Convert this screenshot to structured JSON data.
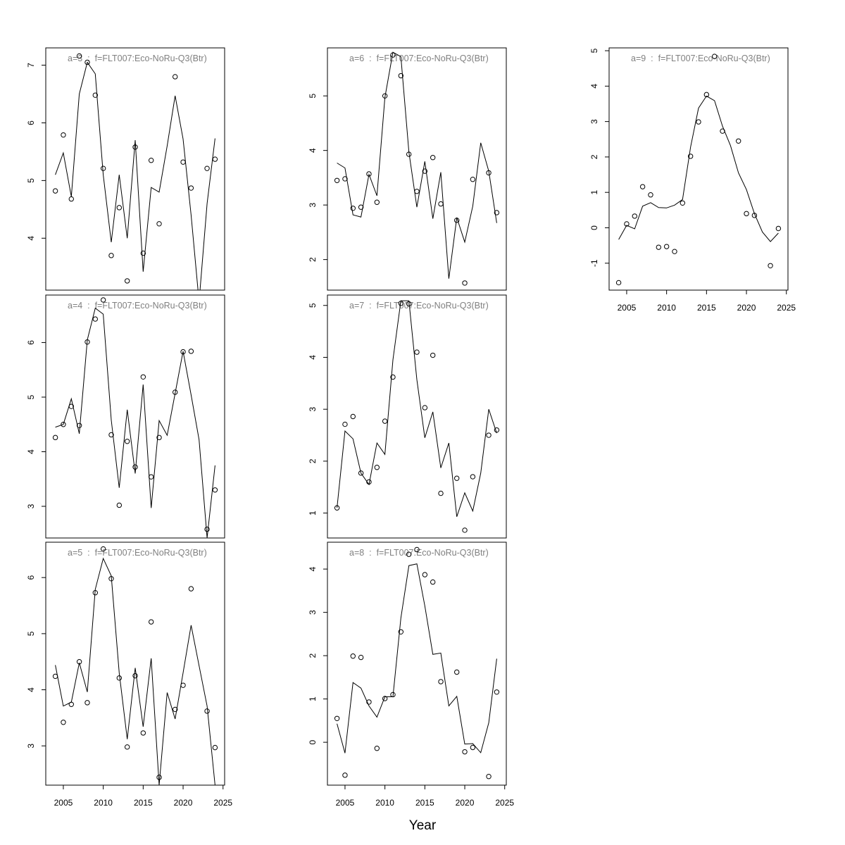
{
  "chart_data": [
    {
      "type": "line",
      "title": "a=3  :  f=FLT007:Eco-NoRu-Q3(Btr)",
      "xlim": [
        2002.8,
        2025.2
      ],
      "ylim": [
        3.1,
        7.3
      ],
      "xticks": [
        2005,
        2010,
        2015,
        2020,
        2025
      ],
      "yticks": [
        4,
        5,
        6,
        7
      ],
      "series": [
        {
          "kind": "line",
          "x": [
            2004,
            2005,
            2006,
            2007,
            2008,
            2009,
            2010,
            2011,
            2012,
            2013,
            2014,
            2015,
            2016,
            2017,
            2018,
            2019,
            2020,
            2021,
            2022,
            2023,
            2024
          ],
          "y": [
            5.1,
            5.48,
            4.72,
            6.5,
            7.05,
            6.85,
            5.1,
            3.93,
            5.1,
            4.0,
            5.7,
            3.42,
            4.88,
            4.8,
            5.6,
            6.47,
            5.72,
            4.4,
            2.9,
            4.6,
            5.73
          ]
        },
        {
          "kind": "points",
          "x": [
            2004,
            2005,
            2006,
            2007,
            2008,
            2009,
            2010,
            2011,
            2012,
            2013,
            2014,
            2015,
            2016,
            2017,
            2019,
            2020,
            2021,
            2023,
            2024
          ],
          "y": [
            4.82,
            5.79,
            4.68,
            7.16,
            7.05,
            6.48,
            5.21,
            3.7,
            4.53,
            3.26,
            5.58,
            3.74,
            5.35,
            4.25,
            6.8,
            5.32,
            4.87,
            5.21,
            5.37
          ]
        }
      ]
    },
    {
      "type": "line",
      "title": "a=4  :  f=FLT007:Eco-NoRu-Q3(Btr)",
      "xlim": [
        2002.8,
        2025.2
      ],
      "ylim": [
        2.42,
        6.87
      ],
      "xticks": [
        2005,
        2010,
        2015,
        2020,
        2025
      ],
      "yticks": [
        3,
        4,
        5,
        6
      ],
      "series": [
        {
          "kind": "line",
          "x": [
            2004,
            2005,
            2006,
            2007,
            2008,
            2009,
            2010,
            2011,
            2012,
            2013,
            2014,
            2015,
            2016,
            2017,
            2018,
            2019,
            2020,
            2021,
            2022,
            2023,
            2024
          ],
          "y": [
            4.45,
            4.5,
            4.97,
            4.33,
            6.05,
            6.63,
            6.52,
            4.58,
            3.34,
            4.77,
            3.6,
            5.23,
            2.97,
            4.57,
            4.3,
            5.07,
            5.84,
            5.04,
            4.22,
            2.42,
            3.75
          ]
        },
        {
          "kind": "points",
          "x": [
            2004,
            2005,
            2006,
            2007,
            2008,
            2009,
            2010,
            2011,
            2012,
            2013,
            2014,
            2015,
            2016,
            2017,
            2019,
            2020,
            2021,
            2023,
            2024
          ],
          "y": [
            4.26,
            4.5,
            4.83,
            4.48,
            6.01,
            6.43,
            6.78,
            4.31,
            3.02,
            4.19,
            3.72,
            5.37,
            3.54,
            4.26,
            5.09,
            5.83,
            5.84,
            2.58,
            3.3
          ]
        }
      ]
    },
    {
      "type": "line",
      "title": "a=5  :  f=FLT007:Eco-NoRu-Q3(Btr)",
      "xlim": [
        2002.8,
        2025.2
      ],
      "ylim": [
        2.3,
        6.63
      ],
      "xticks": [
        2005,
        2010,
        2015,
        2020,
        2025
      ],
      "yticks": [
        3,
        4,
        5,
        6
      ],
      "series": [
        {
          "kind": "line",
          "x": [
            2004,
            2005,
            2006,
            2007,
            2008,
            2009,
            2010,
            2011,
            2012,
            2013,
            2014,
            2015,
            2016,
            2017,
            2018,
            2019,
            2020,
            2021,
            2022,
            2023,
            2024
          ],
          "y": [
            4.44,
            3.71,
            3.78,
            4.48,
            3.96,
            5.79,
            6.34,
            6.03,
            4.3,
            3.12,
            4.39,
            3.34,
            4.56,
            2.3,
            3.95,
            3.48,
            4.3,
            5.15,
            4.43,
            3.71,
            2.3
          ]
        },
        {
          "kind": "points",
          "x": [
            2004,
            2005,
            2006,
            2007,
            2008,
            2009,
            2010,
            2011,
            2012,
            2013,
            2014,
            2015,
            2016,
            2017,
            2019,
            2020,
            2021,
            2023,
            2024
          ],
          "y": [
            4.24,
            3.42,
            3.74,
            4.5,
            3.77,
            5.73,
            6.51,
            5.98,
            4.21,
            2.98,
            4.25,
            3.23,
            5.21,
            2.44,
            3.65,
            4.08,
            5.8,
            3.62,
            2.97
          ]
        }
      ]
    },
    {
      "type": "line",
      "title": "a=6  :  f=FLT007:Eco-NoRu-Q3(Btr)",
      "xlim": [
        2002.8,
        2025.2
      ],
      "ylim": [
        1.44,
        5.88
      ],
      "xticks": [
        2005,
        2010,
        2015,
        2020,
        2025
      ],
      "yticks": [
        2,
        3,
        4,
        5
      ],
      "series": [
        {
          "kind": "line",
          "x": [
            2004,
            2005,
            2006,
            2007,
            2008,
            2009,
            2010,
            2011,
            2012,
            2013,
            2014,
            2015,
            2016,
            2017,
            2018,
            2019,
            2020,
            2021,
            2022,
            2023,
            2024
          ],
          "y": [
            3.77,
            3.68,
            2.82,
            2.78,
            3.56,
            3.17,
            4.97,
            5.8,
            5.72,
            3.97,
            2.96,
            3.8,
            2.75,
            3.6,
            1.65,
            2.77,
            2.32,
            2.98,
            4.14,
            3.62,
            2.67
          ]
        },
        {
          "kind": "points",
          "x": [
            2004,
            2005,
            2006,
            2007,
            2008,
            2009,
            2010,
            2011,
            2012,
            2013,
            2014,
            2015,
            2016,
            2017,
            2019,
            2020,
            2021,
            2023,
            2024
          ],
          "y": [
            3.45,
            3.48,
            2.94,
            2.96,
            3.57,
            3.05,
            5.0,
            5.75,
            5.37,
            3.93,
            3.25,
            3.62,
            3.87,
            3.02,
            2.72,
            1.57,
            3.47,
            3.59,
            2.86
          ]
        }
      ]
    },
    {
      "type": "line",
      "title": "a=7  :  f=FLT007:Eco-NoRu-Q3(Btr)",
      "xlim": [
        2002.8,
        2025.2
      ],
      "ylim": [
        0.52,
        5.2
      ],
      "xticks": [
        2005,
        2010,
        2015,
        2020,
        2025
      ],
      "yticks": [
        1,
        2,
        3,
        4,
        5
      ],
      "series": [
        {
          "kind": "line",
          "x": [
            2004,
            2005,
            2006,
            2007,
            2008,
            2009,
            2010,
            2011,
            2012,
            2013,
            2014,
            2015,
            2016,
            2017,
            2018,
            2019,
            2020,
            2021,
            2022,
            2023,
            2024
          ],
          "y": [
            1.1,
            2.58,
            2.43,
            1.77,
            1.55,
            2.35,
            2.13,
            3.95,
            5.09,
            5.09,
            3.57,
            2.45,
            2.95,
            1.87,
            2.35,
            0.93,
            1.39,
            1.04,
            1.77,
            3.0,
            2.54
          ]
        },
        {
          "kind": "points",
          "x": [
            2004,
            2005,
            2006,
            2007,
            2008,
            2009,
            2010,
            2011,
            2012,
            2013,
            2014,
            2015,
            2016,
            2017,
            2019,
            2020,
            2021,
            2023,
            2024
          ],
          "y": [
            1.1,
            2.71,
            2.86,
            1.77,
            1.6,
            1.88,
            2.77,
            3.62,
            5.04,
            5.03,
            4.1,
            3.03,
            4.04,
            1.38,
            1.67,
            0.67,
            1.7,
            2.5,
            2.6
          ]
        }
      ]
    },
    {
      "type": "line",
      "title": "a=8  :  f=FLT007:Eco-NoRu-Q3(Btr)",
      "xlim": [
        2002.8,
        2025.2
      ],
      "ylim": [
        -0.99,
        4.62
      ],
      "xticks": [
        2005,
        2010,
        2015,
        2020,
        2025
      ],
      "yticks": [
        0,
        1,
        2,
        3,
        4
      ],
      "series": [
        {
          "kind": "line",
          "x": [
            2004,
            2005,
            2006,
            2007,
            2008,
            2009,
            2010,
            2011,
            2012,
            2013,
            2014,
            2015,
            2016,
            2017,
            2018,
            2019,
            2020,
            2021,
            2022,
            2023,
            2024
          ],
          "y": [
            0.43,
            -0.25,
            1.38,
            1.25,
            0.84,
            0.58,
            1.05,
            1.05,
            2.87,
            4.08,
            4.12,
            3.15,
            2.03,
            2.06,
            0.84,
            1.06,
            -0.04,
            -0.03,
            -0.24,
            0.45,
            1.93
          ]
        },
        {
          "kind": "points",
          "x": [
            2004,
            2005,
            2006,
            2007,
            2008,
            2009,
            2010,
            2011,
            2012,
            2013,
            2014,
            2015,
            2016,
            2017,
            2019,
            2020,
            2021,
            2023,
            2024
          ],
          "y": [
            0.55,
            -0.76,
            1.99,
            1.96,
            0.93,
            -0.14,
            1.01,
            1.1,
            2.55,
            4.34,
            4.45,
            3.87,
            3.7,
            1.4,
            1.62,
            -0.22,
            -0.12,
            -0.79,
            1.16
          ]
        }
      ]
    },
    {
      "type": "line",
      "title": "a=9  :  f=FLT007:Eco-NoRu-Q3(Btr)",
      "xlim": [
        2002.8,
        2025.2
      ],
      "ylim": [
        -1.76,
        5.08
      ],
      "xticks": [
        2005,
        2010,
        2015,
        2020,
        2025
      ],
      "yticks": [
        -1,
        0,
        1,
        2,
        3,
        4,
        5
      ],
      "series": [
        {
          "kind": "line",
          "x": [
            2004,
            2005,
            2006,
            2007,
            2008,
            2009,
            2010,
            2011,
            2012,
            2013,
            2014,
            2015,
            2016,
            2017,
            2018,
            2019,
            2020,
            2021,
            2022,
            2023,
            2024
          ],
          "y": [
            -0.33,
            0.07,
            -0.03,
            0.61,
            0.71,
            0.57,
            0.56,
            0.64,
            0.8,
            2.28,
            3.38,
            3.72,
            3.59,
            2.87,
            2.32,
            1.55,
            1.08,
            0.4,
            -0.12,
            -0.39,
            -0.15
          ]
        },
        {
          "kind": "points",
          "x": [
            2004,
            2005,
            2006,
            2007,
            2008,
            2009,
            2010,
            2011,
            2012,
            2013,
            2014,
            2015,
            2016,
            2017,
            2019,
            2020,
            2021,
            2023,
            2024
          ],
          "y": [
            -1.55,
            0.11,
            0.33,
            1.16,
            0.93,
            -0.55,
            -0.53,
            -0.67,
            0.7,
            2.02,
            2.99,
            3.76,
            4.84,
            2.73,
            2.45,
            0.4,
            0.35,
            -1.07,
            -0.02
          ]
        }
      ]
    }
  ],
  "xlabel": "Year"
}
